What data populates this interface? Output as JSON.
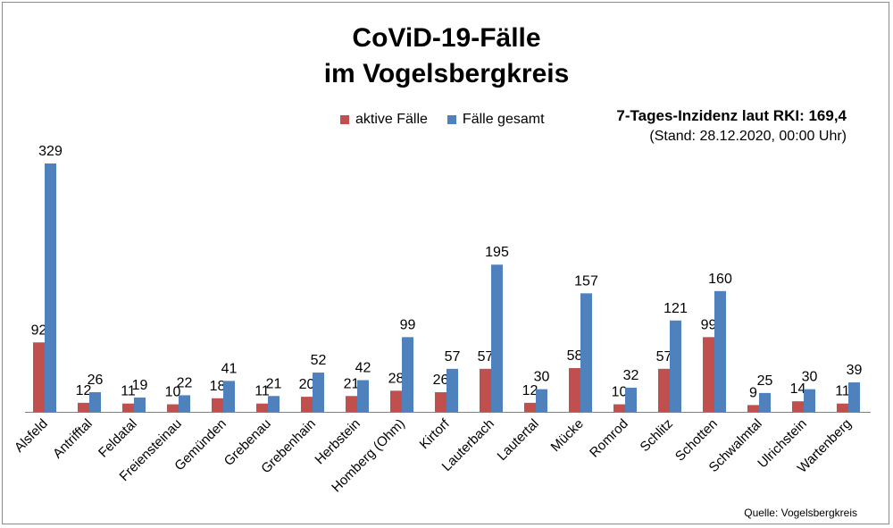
{
  "chart_data": {
    "type": "bar",
    "title": "CoViD-19-Fälle",
    "subtitle": "im Vogelsbergkreis",
    "categories": [
      "Alsfeld",
      "Antrifftal",
      "Feldatal",
      "Freiensteinau",
      "Gemünden",
      "Grebenau",
      "Grebenhain",
      "Herbstein",
      "Homberg (Ohm)",
      "Kirtorf",
      "Lauterbach",
      "Lautertal",
      "Mücke",
      "Romrod",
      "Schlitz",
      "Schotten",
      "Schwalmtal",
      "Ulrichstein",
      "Wartenberg"
    ],
    "series": [
      {
        "name": "aktive Fälle",
        "color": "#c0504d",
        "values": [
          92,
          12,
          11,
          10,
          18,
          11,
          20,
          21,
          28,
          26,
          57,
          12,
          58,
          10,
          57,
          99,
          9,
          14,
          11
        ]
      },
      {
        "name": "Fälle gesamt",
        "color": "#4f81bd",
        "values": [
          329,
          26,
          19,
          22,
          41,
          21,
          52,
          42,
          99,
          57,
          195,
          30,
          157,
          32,
          121,
          160,
          25,
          30,
          39
        ]
      }
    ],
    "ylim": [
      0,
      329
    ],
    "grid": false,
    "legend": "top-center",
    "annotation": {
      "label": "7-Tages-Inzidenz laut RKI: 169,4",
      "sub": "(Stand: 28.12.2020, 00:00 Uhr)"
    },
    "source": "Quelle: Vogelsbergkreis"
  }
}
